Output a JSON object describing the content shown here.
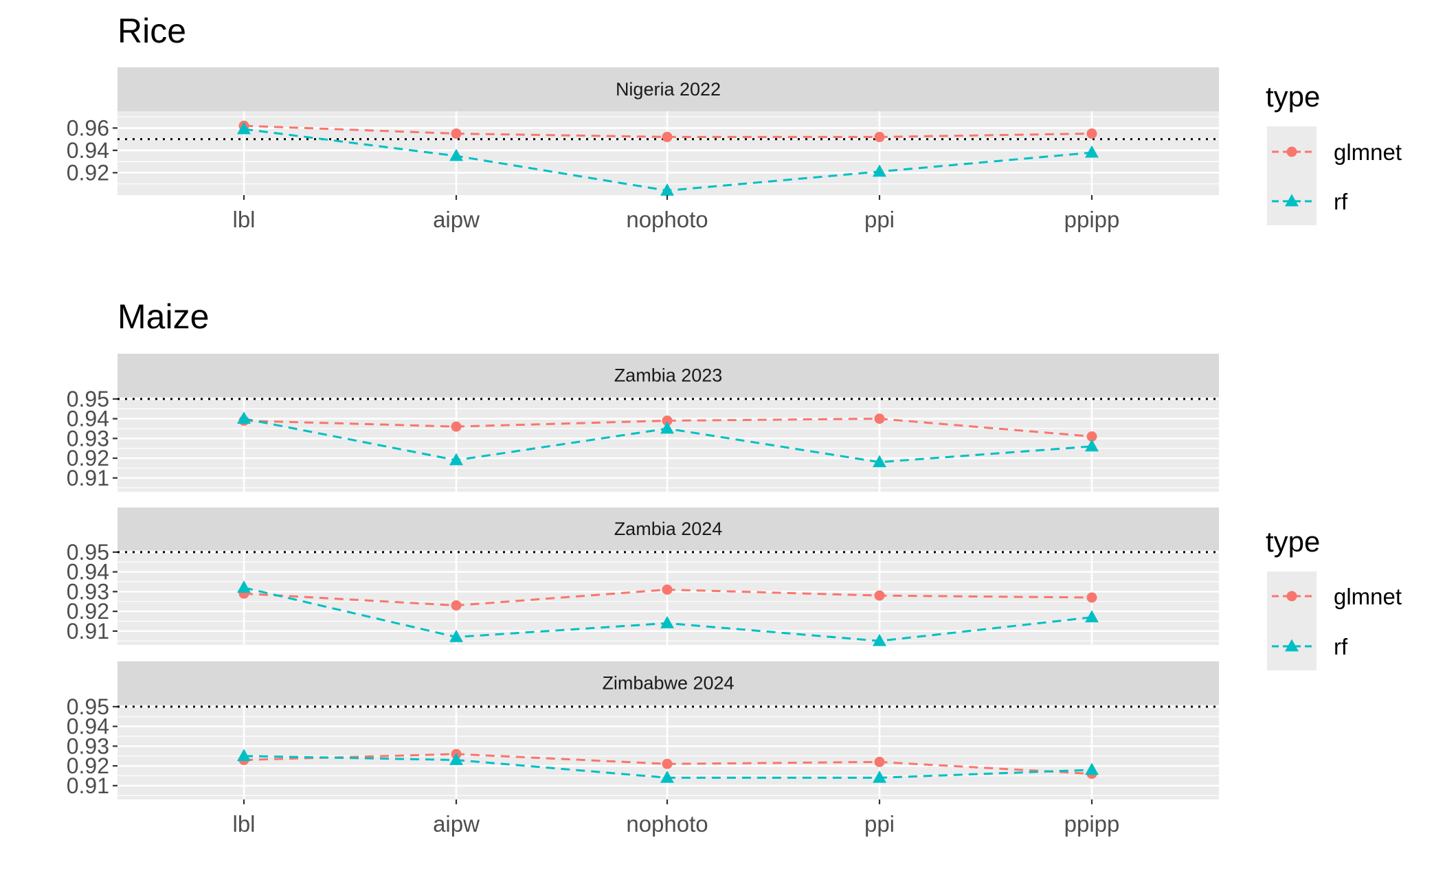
{
  "figure": {
    "legend": {
      "title": "type",
      "entries": [
        {
          "label": "glmnet",
          "color": "#F8766D",
          "marker": "circle"
        },
        {
          "label": "rf",
          "color": "#00BFC4",
          "marker": "triangle"
        }
      ]
    }
  },
  "chart_data": [
    {
      "type": "line",
      "title": "Rice",
      "xlabel": "",
      "ylabel": "",
      "categories": [
        "lbl",
        "aipw",
        "nophoto",
        "ppi",
        "ppipp"
      ],
      "reference_line": {
        "y": 0.95,
        "style": "dotted"
      },
      "legend_position": "right",
      "panels": [
        {
          "strip": "Nigeria 2022",
          "ylim": [
            0.9,
            0.975
          ],
          "y_ticks": [
            0.92,
            0.94,
            0.96
          ],
          "y_tick_labels": [
            "0.92",
            "0.94",
            "0.96"
          ],
          "series": [
            {
              "name": "glmnet",
              "values": [
                0.962,
                0.955,
                0.952,
                0.952,
                0.955
              ]
            },
            {
              "name": "rf",
              "values": [
                0.959,
                0.935,
                0.904,
                0.921,
                0.938
              ]
            }
          ]
        }
      ]
    },
    {
      "type": "line",
      "title": "Maize",
      "xlabel": "",
      "ylabel": "",
      "categories": [
        "lbl",
        "aipw",
        "nophoto",
        "ppi",
        "ppipp"
      ],
      "reference_line": {
        "y": 0.95,
        "style": "dotted"
      },
      "legend_position": "right",
      "panels": [
        {
          "strip": "Zambia 2023",
          "ylim": [
            0.903,
            0.951
          ],
          "y_ticks": [
            0.91,
            0.92,
            0.93,
            0.94,
            0.95
          ],
          "y_tick_labels": [
            "0.91",
            "0.92",
            "0.93",
            "0.94",
            "0.95"
          ],
          "series": [
            {
              "name": "glmnet",
              "values": [
                0.939,
                0.936,
                0.939,
                0.94,
                0.931
              ]
            },
            {
              "name": "rf",
              "values": [
                0.94,
                0.919,
                0.935,
                0.918,
                0.926
              ]
            }
          ]
        },
        {
          "strip": "Zambia 2024",
          "ylim": [
            0.903,
            0.951
          ],
          "y_ticks": [
            0.91,
            0.92,
            0.93,
            0.94,
            0.95
          ],
          "y_tick_labels": [
            "0.91",
            "0.92",
            "0.93",
            "0.94",
            "0.95"
          ],
          "series": [
            {
              "name": "glmnet",
              "values": [
                0.929,
                0.923,
                0.931,
                0.928,
                0.927
              ]
            },
            {
              "name": "rf",
              "values": [
                0.932,
                0.907,
                0.914,
                0.905,
                0.917
              ]
            }
          ]
        },
        {
          "strip": "Zimbabwe 2024",
          "ylim": [
            0.903,
            0.951
          ],
          "y_ticks": [
            0.91,
            0.92,
            0.93,
            0.94,
            0.95
          ],
          "y_tick_labels": [
            "0.91",
            "0.92",
            "0.93",
            "0.94",
            "0.95"
          ],
          "series": [
            {
              "name": "glmnet",
              "values": [
                0.923,
                0.926,
                0.921,
                0.922,
                0.916
              ]
            },
            {
              "name": "rf",
              "values": [
                0.925,
                0.923,
                0.914,
                0.914,
                0.918
              ]
            }
          ]
        }
      ]
    }
  ]
}
